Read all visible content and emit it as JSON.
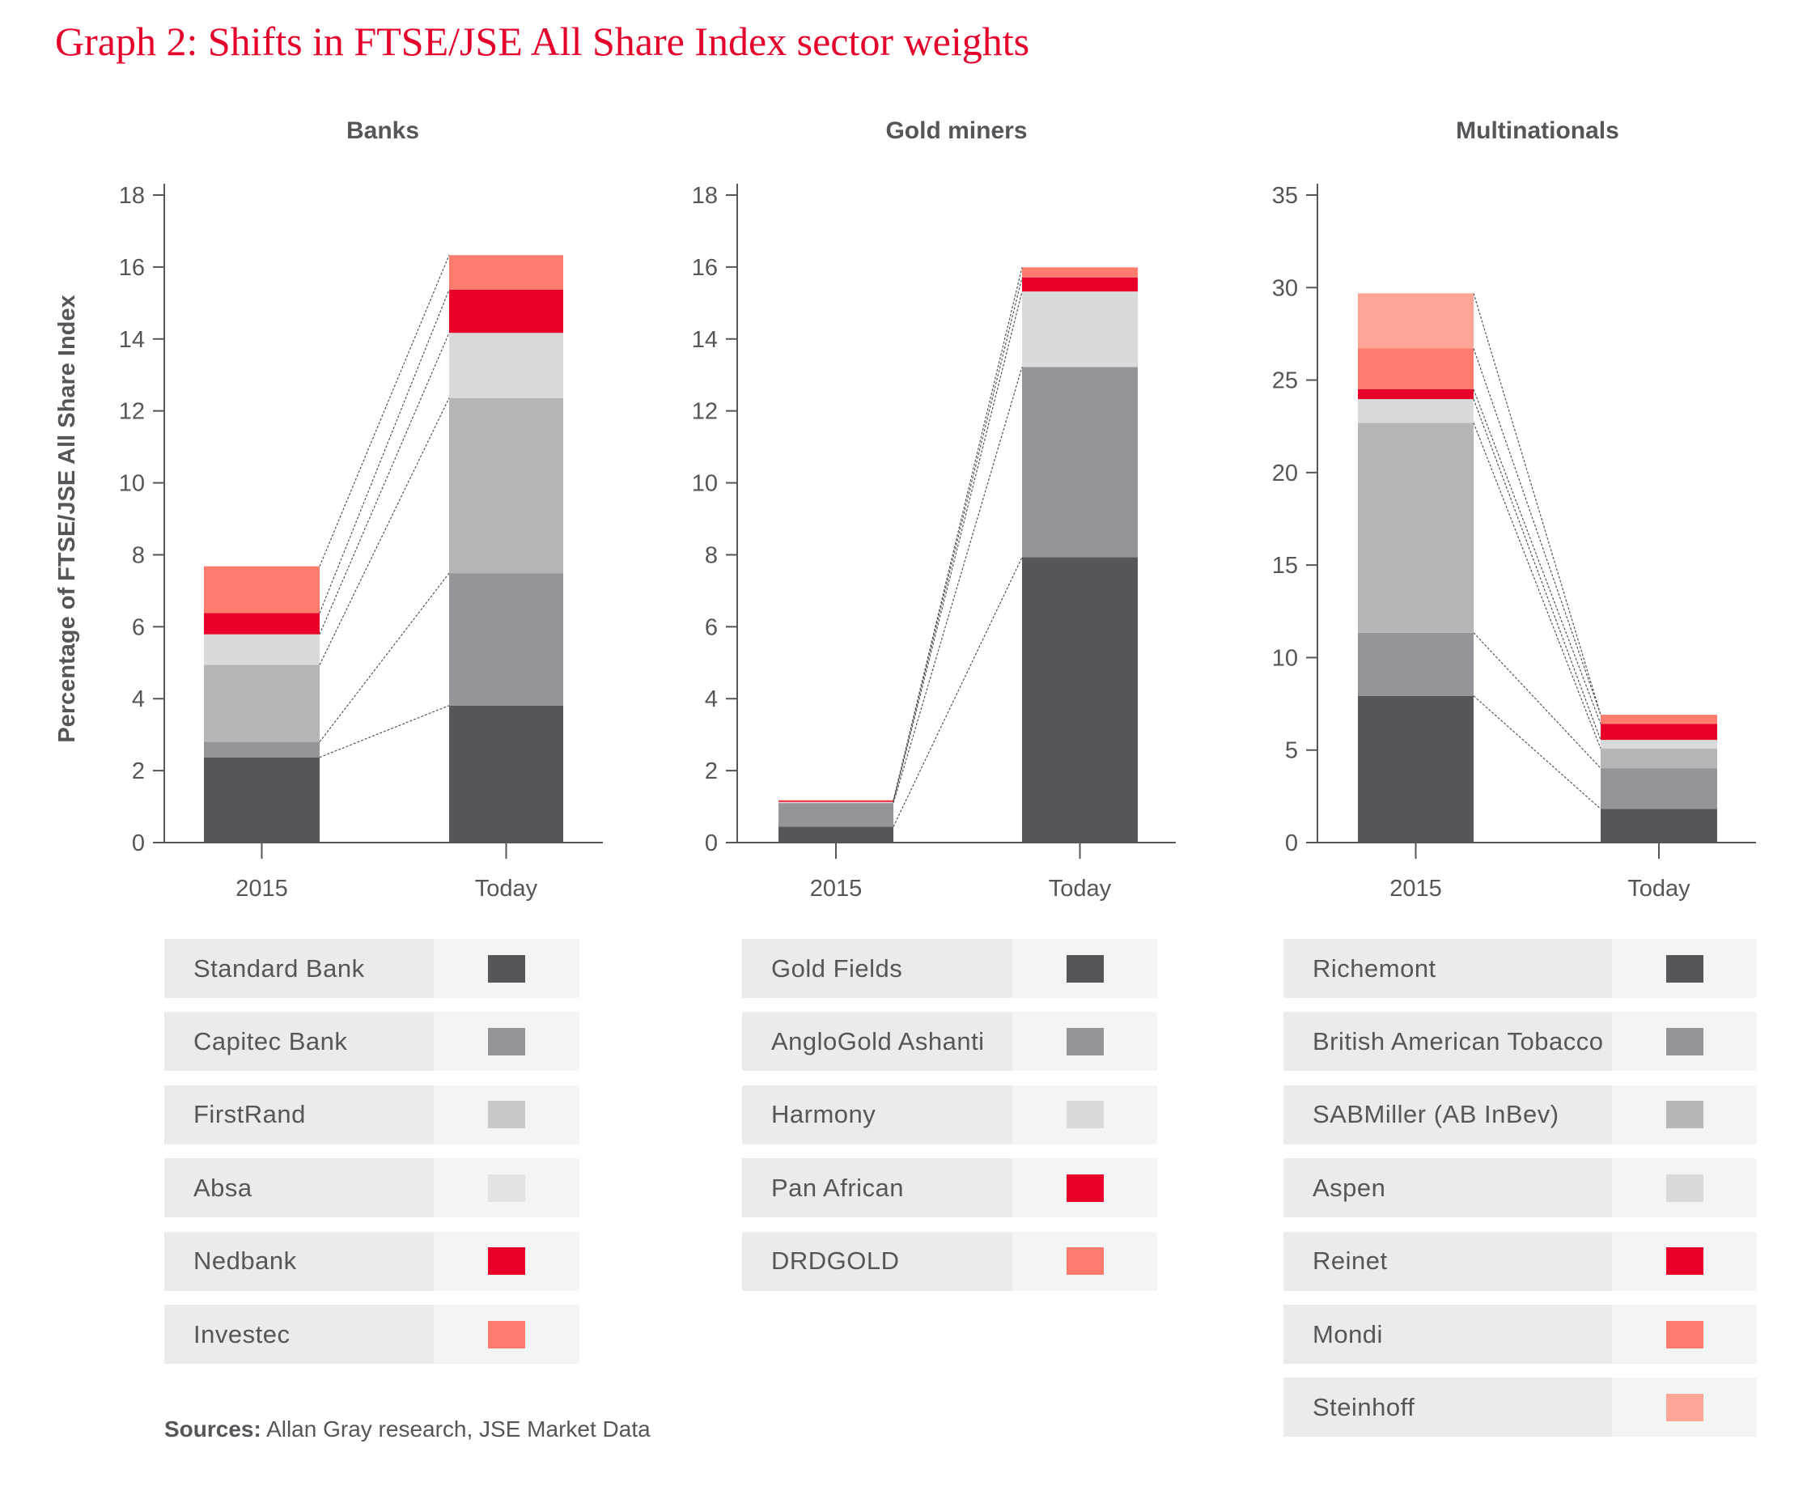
{
  "title": "Graph 2: Shifts in FTSE/JSE All Share Index sector weights",
  "sources_label": "Sources:",
  "sources_text": " Allan Gray research, JSE Market Data",
  "chart_data": [
    {
      "type": "bar",
      "stacked": true,
      "title": "Banks",
      "ylabel": "Percentage of FTSE/JSE All Share Index",
      "categories": [
        "2015",
        "Today"
      ],
      "ylim": [
        0,
        18
      ],
      "yticks": [
        0,
        2,
        4,
        6,
        8,
        10,
        12,
        14,
        16,
        18
      ],
      "grid": false,
      "legend": "bottom",
      "series": [
        {
          "name": "Standard Bank",
          "color": "#55565a",
          "legend_color": "#55565a",
          "values": [
            2.37,
            3.81
          ]
        },
        {
          "name": "Capitec Bank",
          "color": "#949598",
          "legend_color": "#949598",
          "values": [
            0.43,
            3.68
          ]
        },
        {
          "name": "FirstRand",
          "color": "#b5b6b8",
          "legend_color": "#c7c8c9",
          "values": [
            2.14,
            4.87
          ]
        },
        {
          "name": "Absa",
          "color": "#d9dadb",
          "legend_color": "#e2e2e3",
          "values": [
            0.85,
            1.81
          ]
        },
        {
          "name": "Nedbank",
          "color": "#e8002b",
          "legend_color": "#e8002b",
          "values": [
            0.59,
            1.2
          ]
        },
        {
          "name": "Investec",
          "color": "#ff7b6e",
          "legend_color": "#ff7b6e",
          "values": [
            1.3,
            0.96
          ]
        }
      ]
    },
    {
      "type": "bar",
      "stacked": true,
      "title": "Gold miners",
      "categories": [
        "2015",
        "Today"
      ],
      "ylim": [
        0,
        18
      ],
      "yticks": [
        0,
        2,
        4,
        6,
        8,
        10,
        12,
        14,
        16,
        18
      ],
      "grid": false,
      "legend": "bottom",
      "series": [
        {
          "name": "Gold Fields",
          "color": "#55565a",
          "legend_color": "#55565a",
          "values": [
            0.44,
            7.93
          ]
        },
        {
          "name": "AngloGold Ashanti",
          "color": "#949598",
          "legend_color": "#949598",
          "values": [
            0.66,
            5.29
          ]
        },
        {
          "name": "Harmony",
          "color": "#d9dadb",
          "legend_color": "#d9dadb",
          "values": [
            0.03,
            2.1
          ]
        },
        {
          "name": "Pan African",
          "color": "#e8002b",
          "legend_color": "#e8002b",
          "values": [
            0.03,
            0.39
          ]
        },
        {
          "name": "DRDGOLD",
          "color": "#ff7b6e",
          "legend_color": "#ff7b6e",
          "values": [
            0.02,
            0.28
          ]
        }
      ]
    },
    {
      "type": "bar",
      "stacked": true,
      "title": "Multinationals",
      "categories": [
        "2015",
        "Today"
      ],
      "ylim": [
        0,
        35
      ],
      "yticks": [
        0,
        5,
        10,
        15,
        20,
        25,
        30,
        35
      ],
      "grid": false,
      "legend": "bottom",
      "series": [
        {
          "name": "Richemont",
          "color": "#55565a",
          "legend_color": "#55565a",
          "values": [
            7.93,
            1.82
          ]
        },
        {
          "name": "British American Tobacco",
          "color": "#949598",
          "legend_color": "#949598",
          "values": [
            3.41,
            2.2
          ]
        },
        {
          "name": "SABMiller (AB InBev)",
          "color": "#b5b6b8",
          "legend_color": "#b5b6b8",
          "values": [
            11.35,
            1.07
          ]
        },
        {
          "name": "Aspen",
          "color": "#d9dadb",
          "legend_color": "#d9dadb",
          "values": [
            1.28,
            0.46
          ]
        },
        {
          "name": "Reinet",
          "color": "#e8002b",
          "legend_color": "#e8002b",
          "values": [
            0.53,
            0.87
          ]
        },
        {
          "name": "Mondi",
          "color": "#ff7b6e",
          "legend_color": "#ff7b6e",
          "values": [
            2.21,
            0.49
          ]
        },
        {
          "name": "Steinhoff",
          "color": "#ffa597",
          "legend_color": "#ffa597",
          "values": [
            2.98,
            0.0
          ]
        }
      ]
    }
  ]
}
